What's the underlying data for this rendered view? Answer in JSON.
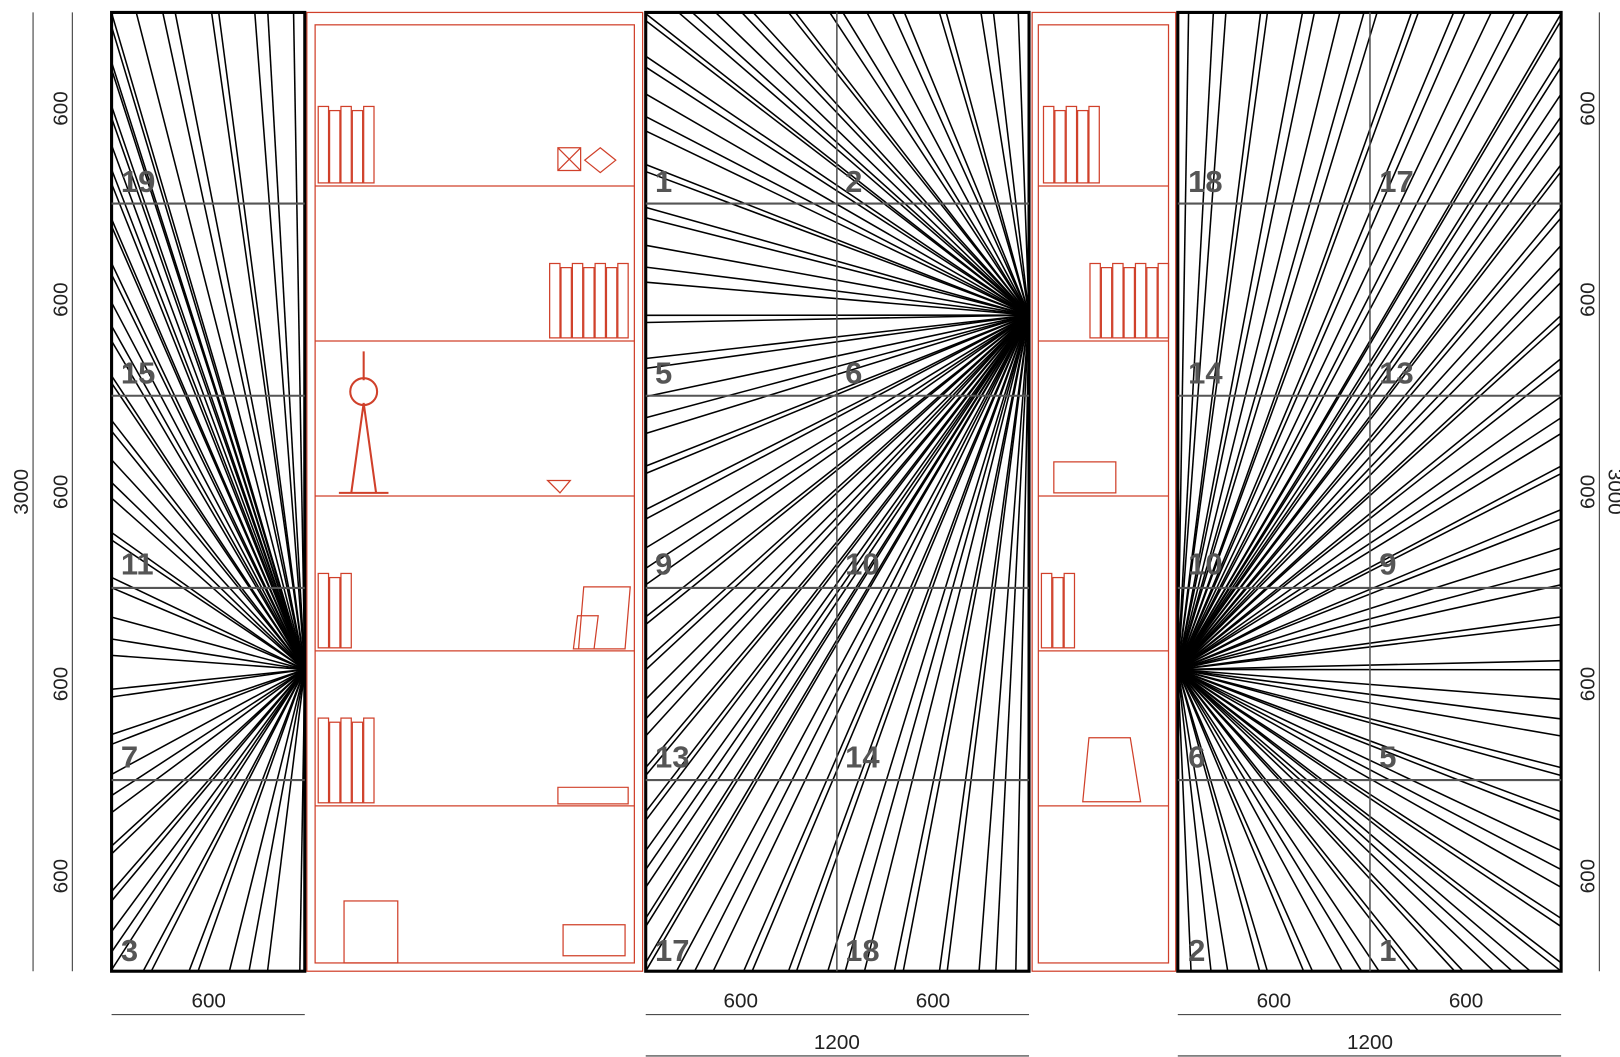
{
  "left_panel": {
    "numbers": [
      "19",
      "15",
      "11",
      "7",
      "3"
    ],
    "width_dim": "600"
  },
  "center_panel": {
    "numbers": [
      "1",
      "2",
      "5",
      "6",
      "9",
      "10",
      "13",
      "14",
      "17",
      "18"
    ],
    "width_dims": [
      "600",
      "600"
    ],
    "total_dim": "1200"
  },
  "right_panel": {
    "numbers": [
      "18",
      "17",
      "14",
      "13",
      "10",
      "9",
      "6",
      "5",
      "2",
      "1"
    ],
    "width_dims": [
      "600",
      "600"
    ],
    "total_dim": "1200"
  },
  "left_dims": {
    "segments": [
      "600",
      "600",
      "600",
      "600",
      "600"
    ],
    "total": "3000"
  },
  "right_dims": {
    "segments": [
      "600",
      "600",
      "600",
      "600",
      "600"
    ],
    "total": "3000"
  }
}
